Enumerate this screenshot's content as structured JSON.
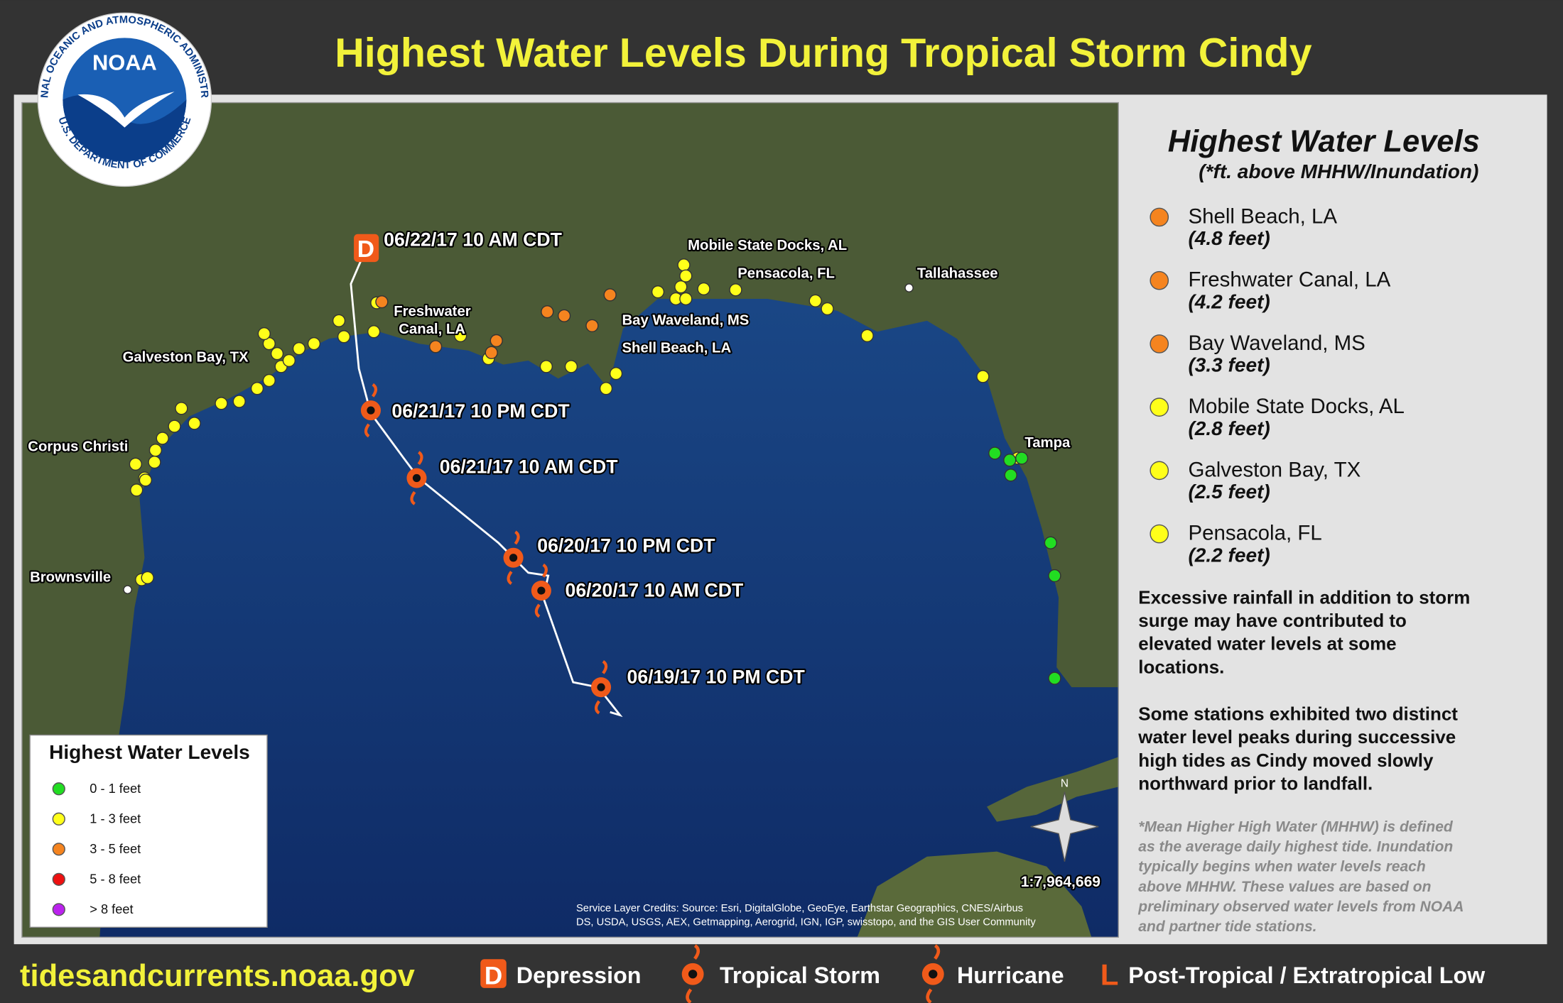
{
  "header": {
    "title": "Highest Water Levels During Tropical Storm Cindy"
  },
  "logo": {
    "name": "NOAA",
    "ring_top": "NATIONAL OCEANIC AND ATMOSPHERIC ADMINISTRATION",
    "ring_bottom": "U.S. DEPARTMENT OF COMMERCE"
  },
  "map": {
    "track_labels": [
      "06/22/17 10 AM CDT",
      "06/21/17 10 PM CDT",
      "06/21/17 10 AM CDT",
      "06/20/17 10 PM CDT",
      "06/20/17 10 AM CDT",
      "06/19/17 10 PM CDT"
    ],
    "place_labels": [
      [
        "Galveston Bay, TX"
      ],
      [
        "Corpus Christi"
      ],
      [
        "Brownsville"
      ],
      [
        "Freshwater",
        "Canal, LA"
      ],
      [
        "Mobile State Docks, AL"
      ],
      [
        "Pensacola, FL"
      ],
      [
        "Tallahassee"
      ],
      [
        "Bay Waveland, MS"
      ],
      [
        "Shell Beach, LA"
      ],
      [
        "Tampa"
      ]
    ],
    "north": "N",
    "scale": "1:7,964,669",
    "credits": [
      "Service Layer Credits: Source: Esri, DigitalGlobe, GeoEye, Earthstar Geographics, CNES/Airbus",
      "DS, USDA, USGS, AEX, Getmapping, Aerogrid, IGN, IGP, swisstopo, and the GIS User Community"
    ]
  },
  "map_legend": {
    "title": "Highest Water Levels",
    "items": [
      {
        "label": "0 - 1 feet",
        "color": "#22dd22"
      },
      {
        "label": "1 - 3 feet",
        "color": "#ffff1a"
      },
      {
        "label": "3 - 5 feet",
        "color": "#f5841f"
      },
      {
        "label": "5 - 8 feet",
        "color": "#ee1111"
      },
      {
        "label": "> 8 feet",
        "color": "#bb22ee"
      }
    ]
  },
  "panel": {
    "title": "Highest Water Levels",
    "subtitle": "(*ft. above MHHW/Inundation)",
    "stations": [
      {
        "name": "Shell Beach, LA",
        "level": "(4.8 feet)"
      },
      {
        "name": "Freshwater Canal, LA",
        "level": "(4.2 feet)"
      },
      {
        "name": "Bay Waveland, MS",
        "level": "(3.3 feet)"
      },
      {
        "name": "Mobile State Docks, AL",
        "level": "(2.8 feet)"
      },
      {
        "name": "Galveston Bay, TX",
        "level": "(2.5 feet)"
      },
      {
        "name": "Pensacola, FL",
        "level": "(2.2 feet)"
      }
    ],
    "notes": [
      [
        "Excessive rainfall in addition to storm",
        "surge may have contributed to",
        "elevated water levels at some",
        "locations."
      ],
      [
        "Some stations exhibited two distinct",
        "water level peaks during successive",
        "high tides as Cindy moved slowly",
        "northward prior to landfall."
      ]
    ],
    "footnote": [
      "*Mean Higher High Water (MHHW) is defined",
      "as the average daily highest tide. Inundation",
      "typically begins when water levels reach",
      "above MHHW. These values are based on",
      "preliminary observed water levels from NOAA",
      "and partner tide stations."
    ]
  },
  "footer": {
    "url": "tidesandcurrents.noaa.gov",
    "key": [
      {
        "symbol": "D",
        "label": "Depression"
      },
      {
        "label": "Tropical Storm"
      },
      {
        "label": "Hurricane"
      },
      {
        "symbol": "L",
        "label": "Post-Tropical / Extratropical Low"
      }
    ]
  }
}
